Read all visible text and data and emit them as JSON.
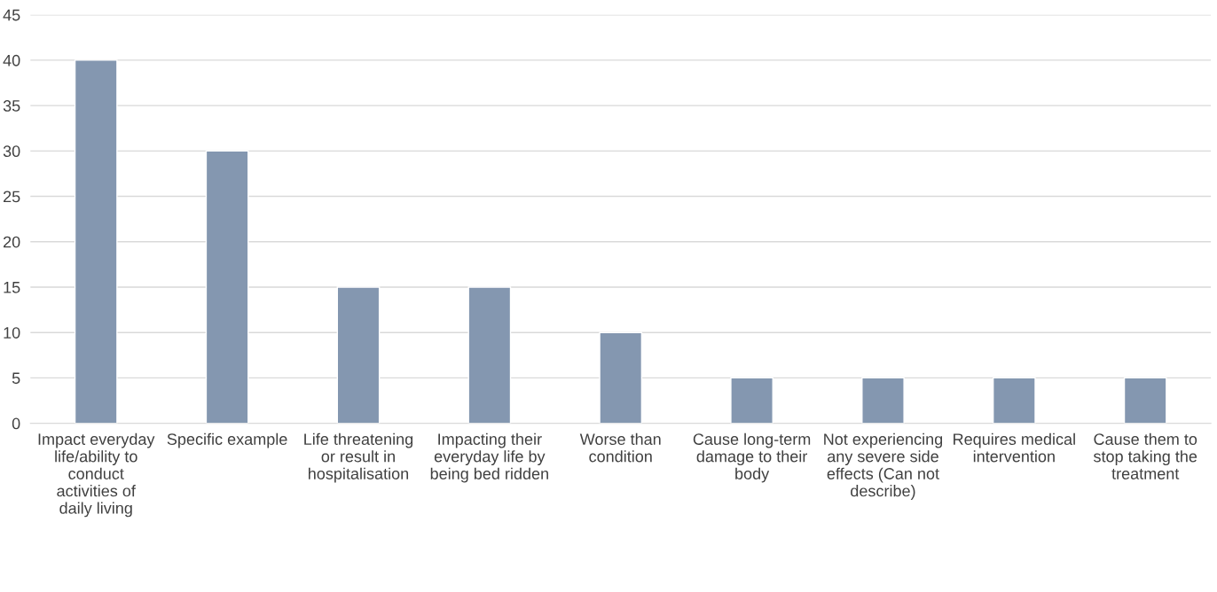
{
  "chart_data": {
    "type": "bar",
    "categories": [
      "Impact everyday life/ability to conduct activities of daily living",
      "Specific example",
      "Life threatening or result in hospitalisation",
      "Impacting their everyday life by being bed ridden",
      "Worse than condition",
      "Cause long-term damage to their body",
      "Not experiencing any severe side effects (Can not describe)",
      "Requires medical intervention",
      "Cause them to stop taking the treatment"
    ],
    "values": [
      40,
      30,
      15,
      15,
      10,
      5,
      5,
      5,
      5
    ],
    "color": "#8497b0",
    "ylim": [
      0,
      45
    ],
    "yticks": [
      0,
      5,
      10,
      15,
      20,
      25,
      30,
      35,
      40,
      45
    ],
    "grid": "y"
  }
}
